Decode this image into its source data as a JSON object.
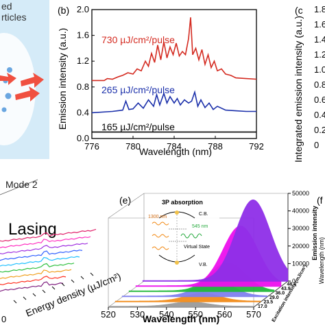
{
  "panels": {
    "a": {
      "text_top": "ed",
      "text_second": "rticles"
    },
    "b": {
      "letter": "(b)"
    },
    "c": {
      "letter": "(c",
      "ylabel": "Integrated emission intensity (a.u.)",
      "ticks": [
        "1.8",
        "1.6",
        "1.4",
        "1.2",
        "1.0",
        "0.8",
        "0.6",
        "0.4",
        "0.2",
        "0"
      ]
    },
    "d": {
      "mode_label": "Mode 2",
      "lasing_label": "Lasing",
      "xlabel": "Energy density (µJ/cm²)",
      "tick_end": "0"
    },
    "e": {
      "letter": "(e)",
      "inset": {
        "title": "3P absorption",
        "cb": "C.B.",
        "vb": "V.B.",
        "virtual": "Virtual State",
        "pump": "1300 nm",
        "emit": "545 nm"
      },
      "xlabel": "Wavelength (nm)",
      "xticks": [
        "520",
        "530",
        "540",
        "550",
        "560",
        "570"
      ],
      "zlabel": "Emission intensity",
      "zticks": [
        "50000",
        "40000",
        "30000",
        "20000",
        "10000",
        "0"
      ],
      "depth_label": "Excitation intensity (mJ/cm²)",
      "depth_ticks": [
        "48.0",
        "43.9",
        "36.0",
        "29.0",
        "23.5",
        "17.0"
      ]
    },
    "f": {
      "letter": "(f",
      "ylabel": "Wavelength (nm)"
    }
  },
  "chart_data": [
    {
      "type": "line",
      "panel": "b",
      "xlabel": "Wavelength (nm)",
      "ylabel": "Emission intensity (a.u.)",
      "xlim": [
        776,
        792
      ],
      "ylim": [
        0,
        2.0
      ],
      "xticks": [
        776,
        780,
        784,
        788,
        792
      ],
      "yticks": [
        0.0,
        0.4,
        0.8,
        1.2,
        1.6,
        2.0
      ],
      "series": [
        {
          "name": "730 µJ/cm²/pulse",
          "color": "#d42a20",
          "x": [
            776,
            777.2,
            777.5,
            778,
            778.6,
            779,
            779.5,
            780,
            780.4,
            780.8,
            781.2,
            781.5,
            781.8,
            782.1,
            782.4,
            782.7,
            783,
            783.3,
            783.6,
            783.9,
            784.2,
            784.5,
            784.8,
            785.1,
            785.4,
            785.6,
            785.8,
            786.1,
            786.4,
            786.7,
            787,
            787.3,
            787.6,
            787.9,
            788.2,
            788.6,
            789,
            789.5,
            790,
            791,
            792
          ],
          "values": [
            0.9,
            0.9,
            0.93,
            0.92,
            0.96,
            0.98,
            1.02,
            1.0,
            1.08,
            1.05,
            1.2,
            1.12,
            1.32,
            1.18,
            1.45,
            1.22,
            1.5,
            1.25,
            1.42,
            1.3,
            1.48,
            1.28,
            1.35,
            1.3,
            1.55,
            1.88,
            1.3,
            1.4,
            1.22,
            1.38,
            1.15,
            1.3,
            1.1,
            1.2,
            1.05,
            1.08,
            1.0,
            0.98,
            0.94,
            0.93,
            0.92
          ]
        },
        {
          "name": "265 µJ/cm²/pulse",
          "color": "#1a2faa",
          "x": [
            776,
            778,
            779,
            779.3,
            779.6,
            780,
            780.5,
            781,
            781.5,
            782,
            782.3,
            782.6,
            783,
            783.3,
            783.6,
            784,
            784.3,
            784.6,
            785,
            785.4,
            785.7,
            786,
            786.3,
            786.6,
            787,
            787.4,
            787.8,
            788.2,
            789,
            790,
            791,
            792
          ],
          "values": [
            0.4,
            0.42,
            0.44,
            0.58,
            0.45,
            0.46,
            0.55,
            0.47,
            0.6,
            0.5,
            0.68,
            0.52,
            0.7,
            0.55,
            0.65,
            0.55,
            0.62,
            0.52,
            0.6,
            0.55,
            0.58,
            0.72,
            0.5,
            0.6,
            0.48,
            0.55,
            0.45,
            0.5,
            0.44,
            0.43,
            0.42,
            0.42
          ]
        },
        {
          "name": "165 µJ/cm²/pulse",
          "color": "#000000",
          "x": [
            776,
            792
          ],
          "values": [
            0.1,
            0.1
          ]
        }
      ]
    },
    {
      "type": "area",
      "panel": "e",
      "xlabel": "Wavelength (nm)",
      "zlabel": "Emission intensity",
      "xlim": [
        520,
        570
      ],
      "zlim": [
        0,
        50000
      ],
      "series": [
        {
          "name": "17.0",
          "color": "#9a9a9a",
          "peak_x": 548,
          "peak": 2500
        },
        {
          "name": "23.5",
          "color": "#f28c1a",
          "peak_x": 550,
          "peak": 4500
        },
        {
          "name": "29.0",
          "color": "#8080f0",
          "peak_x": 552,
          "peak": 9000
        },
        {
          "name": "36.0",
          "color": "#22b83a",
          "peak_x": 554,
          "peak": 16000
        },
        {
          "name": "43.9",
          "color": "#ee10ee",
          "peak_x": 556,
          "peak": 34000
        },
        {
          "name": "48.0",
          "color": "#8f2fe8",
          "peak_x": 558,
          "peak": 46000
        }
      ]
    }
  ]
}
